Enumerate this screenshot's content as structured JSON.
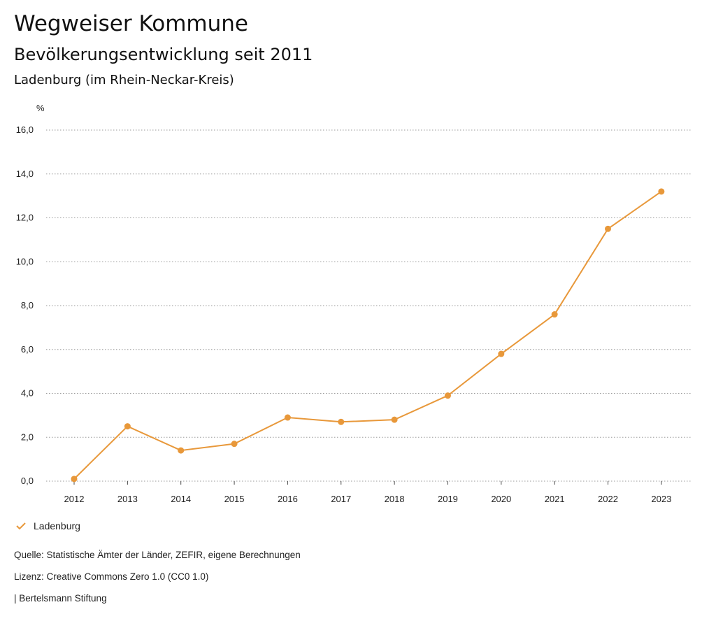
{
  "header": {
    "title": "Wegweiser Kommune",
    "subtitle": "Bevölkerungsentwicklung seit 2011",
    "region": "Ladenburg (im Rhein-Neckar-Kreis)"
  },
  "chart_data": {
    "type": "line",
    "unit_label": "%",
    "x": [
      "2012",
      "2013",
      "2014",
      "2015",
      "2016",
      "2017",
      "2018",
      "2019",
      "2020",
      "2021",
      "2022",
      "2023"
    ],
    "series": [
      {
        "name": "Ladenburg",
        "color": "#e8983a",
        "values": [
          0.1,
          2.5,
          1.4,
          1.7,
          2.9,
          2.7,
          2.8,
          3.9,
          5.8,
          7.6,
          11.5,
          13.2
        ]
      }
    ],
    "ylim": [
      0,
      16
    ],
    "yticks": [
      0,
      2,
      4,
      6,
      8,
      10,
      12,
      14,
      16
    ],
    "ytick_labels": [
      "0,0",
      "2,0",
      "4,0",
      "6,0",
      "8,0",
      "10,0",
      "12,0",
      "14,0",
      "16,0"
    ],
    "grid": true,
    "legend": "bottom-left"
  },
  "legend": {
    "label": "Ladenburg"
  },
  "footer": {
    "source": "Quelle: Statistische Ämter der Länder, ZEFIR, eigene Berechnungen",
    "license": "Lizenz: Creative Commons Zero 1.0 (CC0 1.0)",
    "brand": "| Bertelsmann Stiftung"
  }
}
